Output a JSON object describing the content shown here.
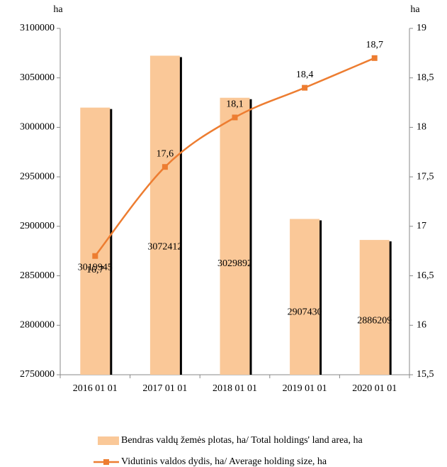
{
  "chart_data": {
    "type": "bar_line",
    "y_label": "ha",
    "y2_label": "ha",
    "categories": [
      "2016 01 01",
      "2017 01 01",
      "2018 01 01",
      "2019 01 01",
      "2020 01 01"
    ],
    "series": [
      {
        "name": "Bendras valdų žemės plotas, ha/ Total holdings' land area, ha",
        "type": "bar",
        "color": "#fac898",
        "values": [
          3019945,
          3072412,
          3029892,
          2907430,
          2886209
        ]
      },
      {
        "name": "Vidutinis valdos dydis, ha/ Average holding size, ha",
        "type": "line",
        "axis": "y2",
        "color": "#ed7d31",
        "values": [
          16.7,
          17.6,
          18.1,
          18.4,
          18.7
        ],
        "value_labels": [
          "16,7",
          "17,6",
          "18,1",
          "18,4",
          "18,7"
        ]
      }
    ],
    "ylim": [
      2750000,
      3100000
    ],
    "yticks": [
      2750000,
      2800000,
      2850000,
      2900000,
      2950000,
      3000000,
      3050000,
      3100000
    ],
    "y2lim": [
      15.5,
      19
    ],
    "y2ticks": [
      {
        "value": 15.5,
        "label": "15,5"
      },
      16,
      {
        "value": 16.5,
        "label": "16,5"
      },
      17,
      {
        "value": 17.5,
        "label": "17,5"
      },
      18,
      {
        "value": 18.5,
        "label": "18,5"
      },
      19
    ],
    "legend": "bottom"
  }
}
